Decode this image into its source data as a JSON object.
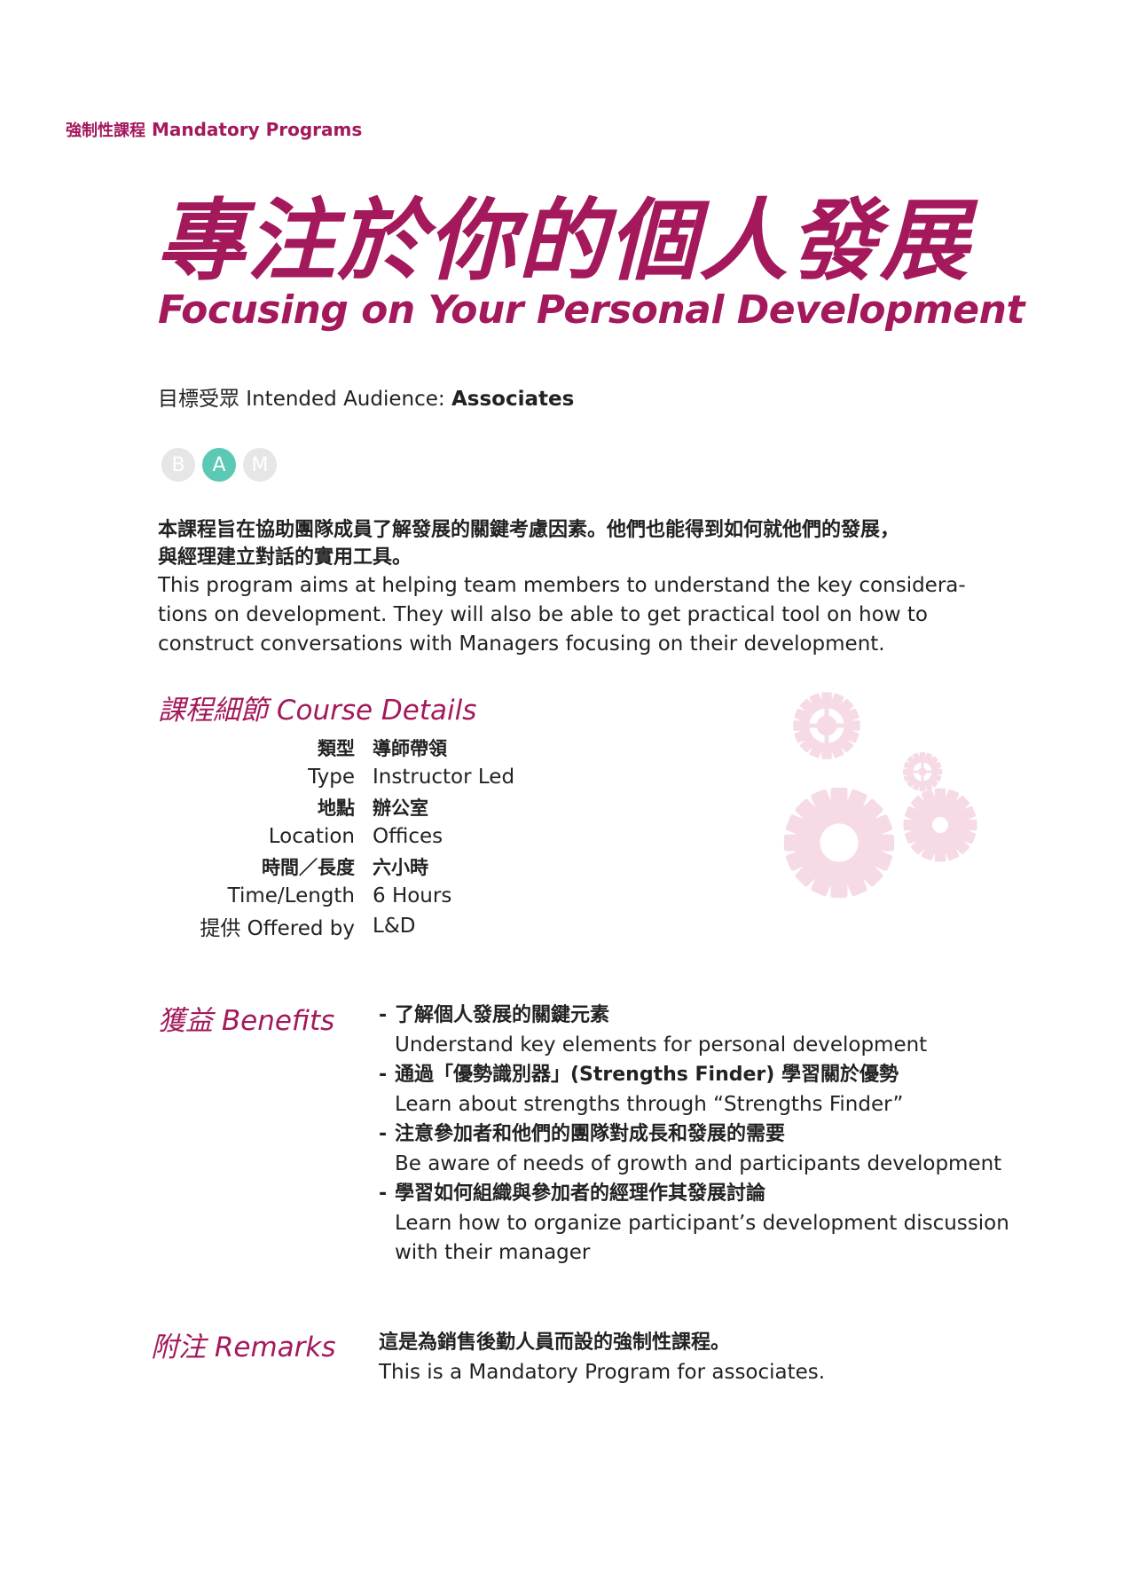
{
  "section_label": {
    "cn": "強制性課程",
    "en": "Mandatory Programs"
  },
  "title": {
    "cn": "專注於你的個人發展",
    "en": "Focusing on Your Personal Development"
  },
  "audience": {
    "label": "目標受眾 Intended Audience:",
    "value": "Associates"
  },
  "badges": [
    {
      "letter": "B",
      "active": false
    },
    {
      "letter": "A",
      "active": true
    },
    {
      "letter": "M",
      "active": false
    }
  ],
  "intro": {
    "cn_line1": "本課程旨在協助團隊成員了解發展的關鍵考慮因素。他們也能得到如何就他們的發展，",
    "cn_line2": "與經理建立對話的實用工具。",
    "en_line1": "This program aims at helping team members to understand the key considera-",
    "en_line2": "tions on development. They will also be able to get practical tool on how to",
    "en_line3": "construct conversations with Managers focusing on their development."
  },
  "details": {
    "heading": "課程細節 Course Details",
    "type_cn_label": "類型",
    "type_cn_value": "導師帶領",
    "type_en_label": "Type",
    "type_en_value": "Instructor Led",
    "location_cn_label": "地點",
    "location_cn_value": "辦公室",
    "location_en_label": "Location",
    "location_en_value": "Offices",
    "time_cn_label": "時間／長度",
    "time_cn_value": "六小時",
    "time_en_label": "Time/Length",
    "time_en_value": "6 Hours",
    "offered_label": "提供 Offered by",
    "offered_value": "L&D"
  },
  "benefits": {
    "heading": "獲益 Benefits",
    "items": [
      {
        "cn": "了解個人發展的關鍵元素",
        "en": "Understand key elements for personal development"
      },
      {
        "cn": "通過「優勢識別器」(Strengths Finder) 學習關於優勢",
        "en": "Learn about strengths through “Strengths Finder”"
      },
      {
        "cn": "注意參加者和他們的團隊對成長和發展的需要",
        "en": "Be aware of needs of growth and participants development"
      },
      {
        "cn": "學習如何組織與參加者的經理作其發展討論",
        "en": "Learn how to organize participant’s development discussion",
        "en2": "with their manager"
      }
    ]
  },
  "remarks": {
    "heading": "附注 Remarks",
    "cn": "這是為銷售後勤人員而設的強制性課程。",
    "en": "This is a Mandatory Program for associates."
  },
  "colors": {
    "accent": "#a3195b",
    "badge_active": "#5cc9b4",
    "badge_inactive": "#e6e6e6",
    "gear": "#f6dbe7"
  },
  "decoration": {
    "icon": "gears-icon"
  }
}
